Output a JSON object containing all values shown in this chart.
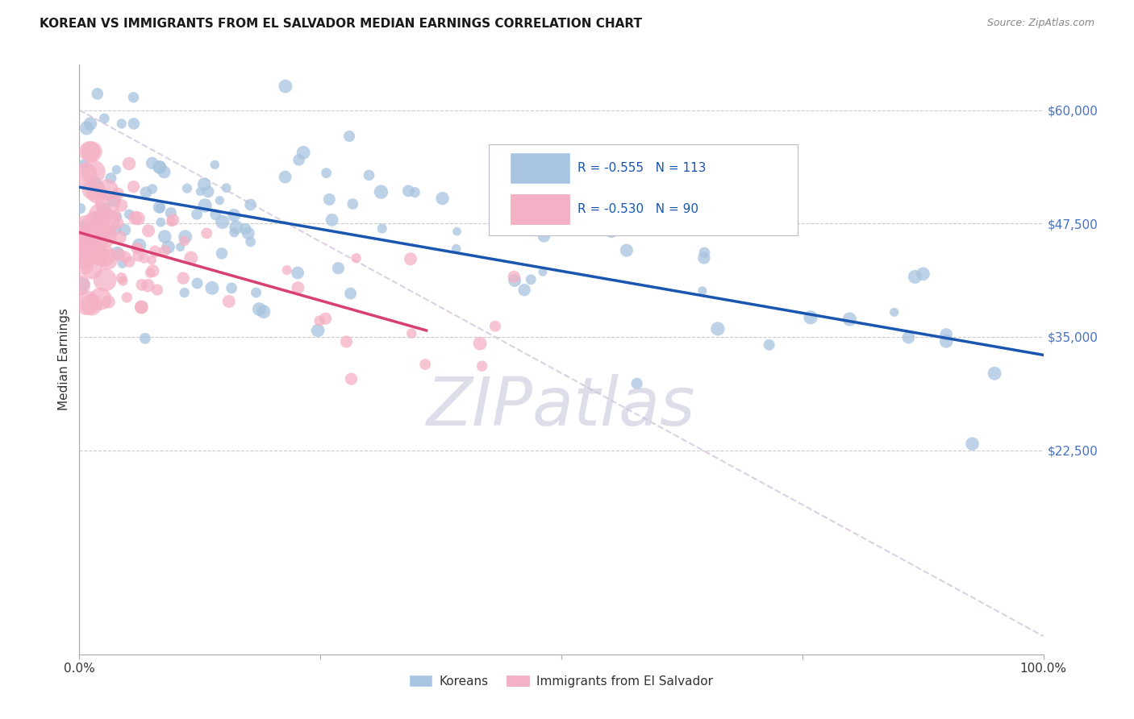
{
  "title": "KOREAN VS IMMIGRANTS FROM EL SALVADOR MEDIAN EARNINGS CORRELATION CHART",
  "source": "Source: ZipAtlas.com",
  "ylabel": "Median Earnings",
  "yticks": [
    0,
    22500,
    35000,
    47500,
    60000
  ],
  "ytick_labels": [
    "",
    "$22,500",
    "$35,000",
    "$47,500",
    "$60,000"
  ],
  "legend_r_korean": "-0.555",
  "legend_n_korean": "113",
  "legend_r_salvador": "-0.530",
  "legend_n_salvador": "90",
  "legend_label_korean": "Koreans",
  "legend_label_salvador": "Immigrants from El Salvador",
  "color_korean": "#a8c4e0",
  "color_salvador": "#f4b0c4",
  "color_line_korean": "#1a56b0",
  "color_line_salvador": "#d84070",
  "color_line_dashed": "#d8cce0",
  "watermark": "ZIPatlas",
  "watermark_color": "#c8c8dc",
  "background_color": "#ffffff",
  "xmin": 0.0,
  "xmax": 1.0,
  "ymin": 0,
  "ymax": 65000,
  "korean_intercept": 51500,
  "korean_slope": -18500,
  "salvador_intercept": 46500,
  "salvador_slope": -30000,
  "dashed_intercept": 60000,
  "dashed_slope": -58000,
  "grid_color": "#cccccc",
  "spine_color": "#aaaaaa",
  "tick_label_color": "#333333",
  "right_tick_color": "#4472c4"
}
